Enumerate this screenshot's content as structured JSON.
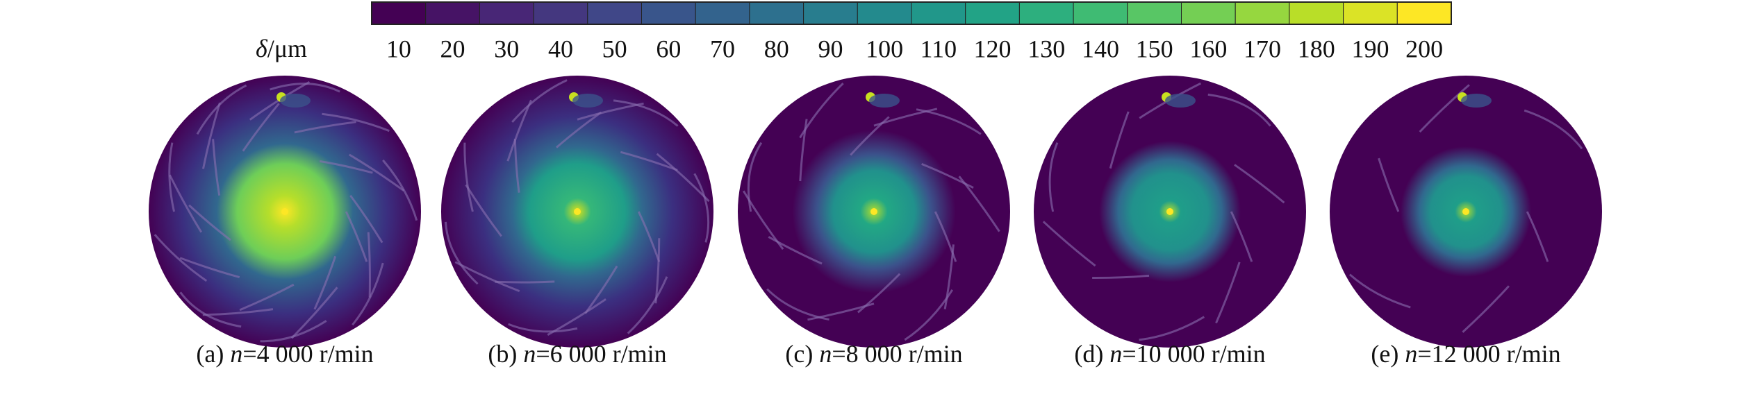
{
  "colorbar": {
    "label_symbol": "δ",
    "label_unit": "/μm",
    "ticks": [
      10,
      20,
      30,
      40,
      50,
      60,
      70,
      80,
      90,
      100,
      110,
      120,
      130,
      140,
      150,
      160,
      170,
      180,
      190,
      200
    ]
  },
  "panels": [
    {
      "tag": "(a) ",
      "variable": "n",
      "text": "=4 000 r/min"
    },
    {
      "tag": "(b) ",
      "variable": "n",
      "text": "=6 000 r/min"
    },
    {
      "tag": "(c) ",
      "variable": "n",
      "text": "=8 000 r/min"
    },
    {
      "tag": "(d) ",
      "variable": "n",
      "text": "=10 000 r/min"
    },
    {
      "tag": "(e) ",
      "variable": "n",
      "text": "=12 000 r/min"
    }
  ]
}
